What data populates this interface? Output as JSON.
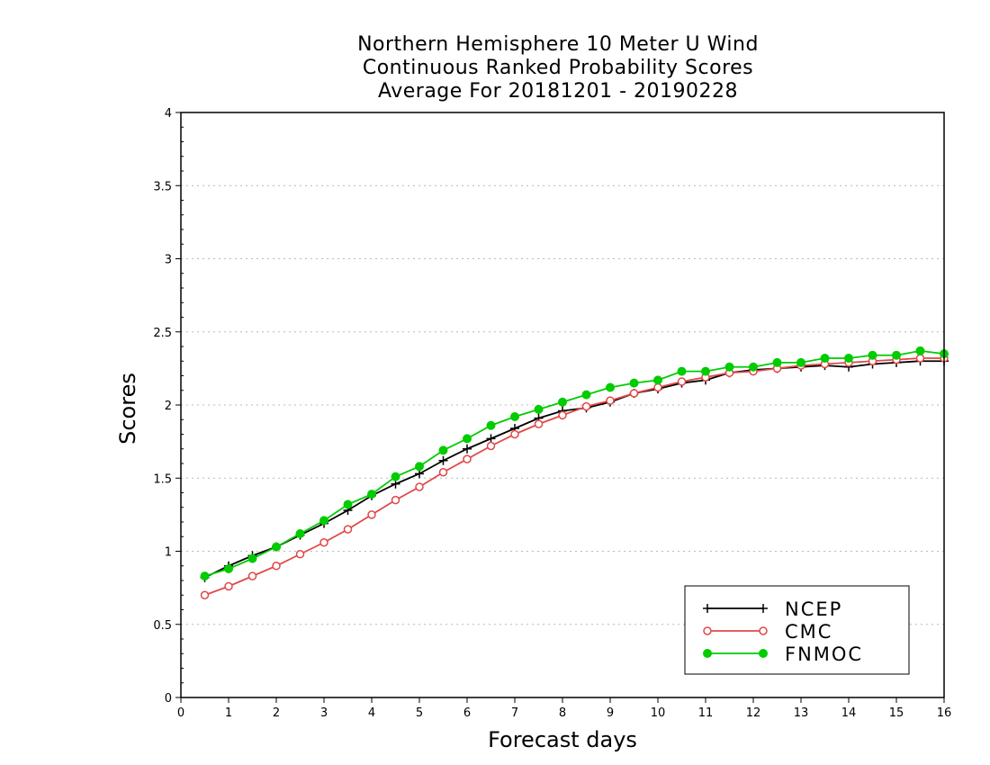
{
  "chart_data": {
    "type": "line",
    "title_lines": [
      "Northern Hemisphere 10 Meter U Wind",
      "Continuous Ranked Probability Scores",
      "Average For 20181201 - 20190228"
    ],
    "xlabel": "Forecast days",
    "ylabel": "Scores",
    "xlim": [
      0,
      16
    ],
    "ylim": [
      0,
      4
    ],
    "x_ticks": [
      "0",
      "1",
      "2",
      "3",
      "4",
      "5",
      "6",
      "7",
      "8",
      "9",
      "10",
      "11",
      "12",
      "13",
      "14",
      "15",
      "16"
    ],
    "y_ticks": [
      "0",
      "0.5",
      "1",
      "1.5",
      "2",
      "2.5",
      "3",
      "3.5",
      "4"
    ],
    "grid": "horizontal dotted",
    "legend_position": "bottom-right",
    "x": [
      0.5,
      1,
      1.5,
      2,
      2.5,
      3,
      3.5,
      4,
      4.5,
      5,
      5.5,
      6,
      6.5,
      7,
      7.5,
      8,
      8.5,
      9,
      9.5,
      10,
      10.5,
      11,
      11.5,
      12,
      12.5,
      13,
      13.5,
      14,
      14.5,
      15,
      15.5,
      16
    ],
    "series": [
      {
        "name": "NCEP",
        "color": "#000000",
        "marker": "plus",
        "values": [
          0.82,
          0.9,
          0.97,
          1.03,
          1.11,
          1.19,
          1.28,
          1.38,
          1.46,
          1.53,
          1.62,
          1.7,
          1.77,
          1.84,
          1.91,
          1.96,
          1.98,
          2.02,
          2.08,
          2.11,
          2.15,
          2.17,
          2.22,
          2.24,
          2.25,
          2.26,
          2.27,
          2.26,
          2.28,
          2.29,
          2.3,
          2.3
        ]
      },
      {
        "name": "CMC",
        "color": "#e04848",
        "marker": "open-circle",
        "values": [
          0.7,
          0.76,
          0.83,
          0.9,
          0.98,
          1.06,
          1.15,
          1.25,
          1.35,
          1.44,
          1.54,
          1.63,
          1.72,
          1.8,
          1.87,
          1.93,
          1.99,
          2.03,
          2.08,
          2.12,
          2.16,
          2.19,
          2.22,
          2.23,
          2.25,
          2.27,
          2.28,
          2.29,
          2.3,
          2.31,
          2.32,
          2.32
        ]
      },
      {
        "name": "FNMOC",
        "color": "#00cc00",
        "marker": "filled-circle",
        "values": [
          0.83,
          0.88,
          0.95,
          1.03,
          1.12,
          1.21,
          1.32,
          1.39,
          1.51,
          1.58,
          1.69,
          1.77,
          1.86,
          1.92,
          1.97,
          2.02,
          2.07,
          2.12,
          2.15,
          2.17,
          2.23,
          2.23,
          2.26,
          2.26,
          2.29,
          2.29,
          2.32,
          2.32,
          2.34,
          2.34,
          2.37,
          2.35
        ]
      }
    ]
  }
}
